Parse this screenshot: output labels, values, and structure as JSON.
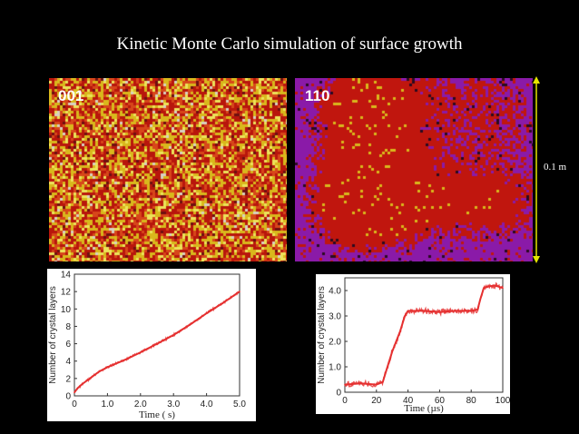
{
  "header": {
    "title": "Kinetic Monte Carlo simulation of surface growth"
  },
  "panels": {
    "left_label": "001",
    "right_label": "110",
    "scale_bar": "0.1 m"
  },
  "colors": {
    "background": "#000000",
    "series_line": "#e53030",
    "surface_red": "#c0160e",
    "surface_yellow": "#e6d020",
    "surface_purple": "#8a1aa8"
  },
  "chart_data": [
    {
      "type": "line",
      "title": "",
      "xlabel": "Time ( s)",
      "ylabel": "Number of crystal layers",
      "xlim": [
        0,
        5.0
      ],
      "ylim": [
        0,
        14
      ],
      "xticks": [
        "0",
        "1.0",
        "2.0",
        "3.0",
        "4.0",
        "5.0"
      ],
      "xtick_values": [
        0,
        1.0,
        2.0,
        3.0,
        4.0,
        5.0
      ],
      "yticks": [
        "0",
        "2",
        "4",
        "6",
        "8",
        "10",
        "12",
        "14"
      ],
      "ytick_values": [
        0,
        2,
        4,
        6,
        8,
        10,
        12,
        14
      ],
      "x": [
        0,
        0.1,
        0.25,
        0.5,
        0.75,
        1.0,
        1.25,
        1.5,
        2.0,
        2.5,
        3.0,
        3.5,
        4.0,
        4.5,
        5.0
      ],
      "y": [
        0.4,
        0.9,
        1.4,
        2.1,
        2.8,
        3.3,
        3.7,
        4.1,
        5.0,
        6.0,
        7.0,
        8.2,
        9.5,
        10.7,
        12.0
      ]
    },
    {
      "type": "line",
      "title": "",
      "xlabel": "Time (µs)",
      "ylabel": "Number of crystal layers",
      "xlim": [
        0,
        100
      ],
      "ylim": [
        0,
        4.5
      ],
      "xticks": [
        "0",
        "20",
        "40",
        "60",
        "80",
        "100"
      ],
      "xtick_values": [
        0,
        20,
        40,
        60,
        80,
        100
      ],
      "yticks": [
        "0",
        "1.0",
        "2.0",
        "3.0",
        "4.0"
      ],
      "ytick_values": [
        0,
        1.0,
        2.0,
        3.0,
        4.0
      ],
      "x": [
        0,
        10,
        20,
        24,
        26,
        30,
        35,
        38,
        40,
        50,
        60,
        70,
        80,
        84,
        86,
        88,
        90,
        95,
        100
      ],
      "y": [
        0.3,
        0.35,
        0.3,
        0.4,
        0.8,
        1.6,
        2.4,
        3.0,
        3.2,
        3.2,
        3.15,
        3.2,
        3.2,
        3.25,
        3.7,
        4.1,
        4.15,
        4.2,
        4.1
      ]
    }
  ]
}
